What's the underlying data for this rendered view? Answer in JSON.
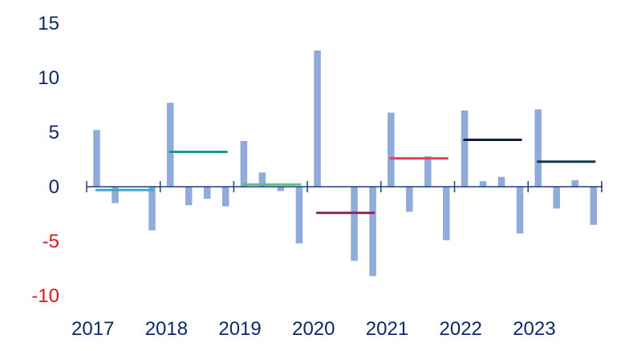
{
  "chart_data": {
    "type": "bar",
    "title": "",
    "xlabel": "",
    "ylabel": "",
    "ylim": [
      -10,
      15
    ],
    "y_ticks": [
      15,
      10,
      5,
      0,
      -5,
      -10
    ],
    "grid": false,
    "legend": "none",
    "years": [
      "2017",
      "2018",
      "2019",
      "2020",
      "2021",
      "2022",
      "2023"
    ],
    "series": [
      {
        "type": "bar",
        "values": [
          5.2,
          -1.5,
          0,
          -4.0,
          7.7,
          -1.7,
          -1.1,
          -1.8,
          4.2,
          1.3,
          -0.4,
          -5.2,
          12.5,
          0,
          -6.8,
          -8.2,
          6.8,
          -2.3,
          2.8,
          -4.9,
          7.0,
          0.5,
          0.9,
          -4.3,
          7.1,
          -2.0,
          0.6,
          -3.5
        ]
      },
      {
        "type": "line",
        "segments": [
          {
            "year": "2017",
            "value": -0.3
          },
          {
            "year": "2018",
            "value": 3.2
          },
          {
            "year": "2019",
            "value": 0.2
          },
          {
            "year": "2020",
            "value": -2.4
          },
          {
            "year": "2021",
            "value": 2.6
          },
          {
            "year": "2022",
            "value": 4.3
          },
          {
            "year": "2023",
            "value": 2.3
          }
        ]
      }
    ],
    "colors": {
      "bars": "#8faadc",
      "axis": "#1f3f7f",
      "positive_tick": "#0a2a6b",
      "negative_tick": "#e8141e",
      "averages": [
        "#3aa6d6",
        "#1a9a8e",
        "#5cc47c",
        "#8c2860",
        "#e83e5c",
        "#0e1f3f",
        "#0f3b4a"
      ]
    }
  }
}
